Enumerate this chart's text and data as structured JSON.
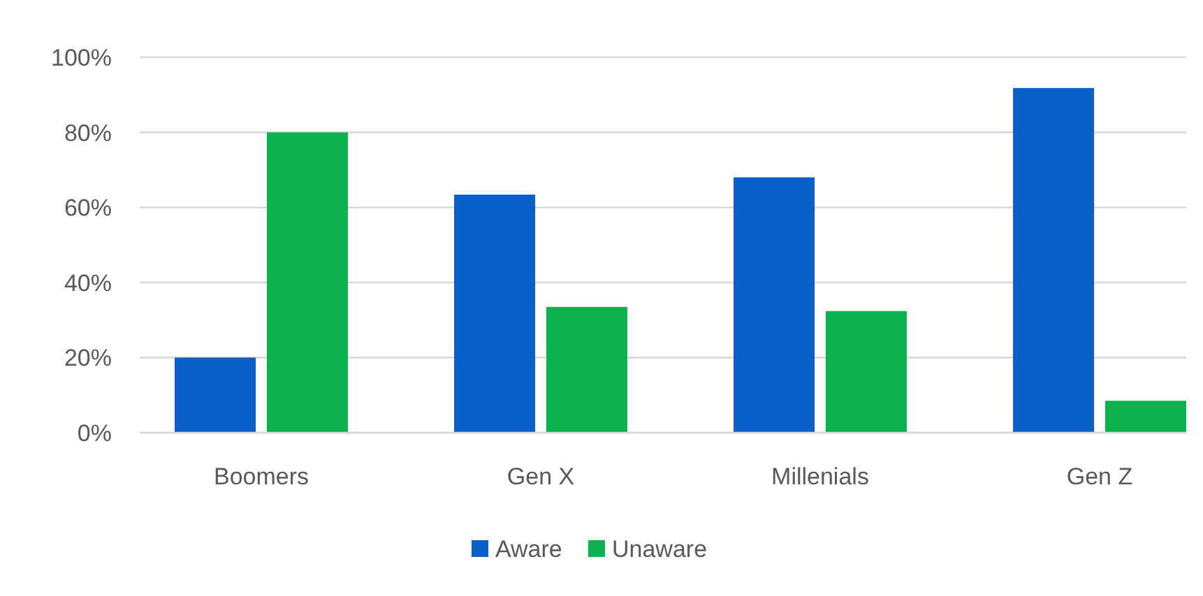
{
  "chart_data": {
    "type": "bar",
    "categories": [
      "Boomers",
      "Gen X",
      "Millenials",
      "Gen Z"
    ],
    "series": [
      {
        "name": "Aware",
        "color": "#0a5fc8",
        "values": [
          20,
          63.4,
          68,
          91.8
        ]
      },
      {
        "name": "Unaware",
        "color": "#0db14d",
        "values": [
          80,
          33.5,
          32.4,
          8.5
        ]
      }
    ],
    "ylim": [
      0,
      100
    ],
    "yticks": [
      {
        "value": 0,
        "label": "0%"
      },
      {
        "value": 20,
        "label": "20%"
      },
      {
        "value": 40,
        "label": "40%"
      },
      {
        "value": 60,
        "label": "60%"
      },
      {
        "value": 80,
        "label": "80%"
      },
      {
        "value": 100,
        "label": "100%"
      }
    ],
    "grid": "y",
    "legend": "bottom"
  }
}
